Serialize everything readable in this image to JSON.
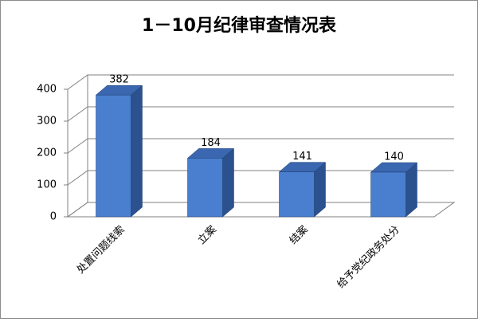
{
  "chart_data": {
    "type": "bar3d",
    "title": "1－10月纪律审查情况表",
    "categories": [
      "处置问题线索",
      "立案",
      "结案",
      "给予党纪政务处分"
    ],
    "values": [
      382,
      184,
      141,
      140
    ],
    "color": "#4a7fcf",
    "ylim": [
      0,
      400
    ],
    "yticks": [
      0,
      100,
      200,
      300,
      400
    ],
    "grid": true
  }
}
